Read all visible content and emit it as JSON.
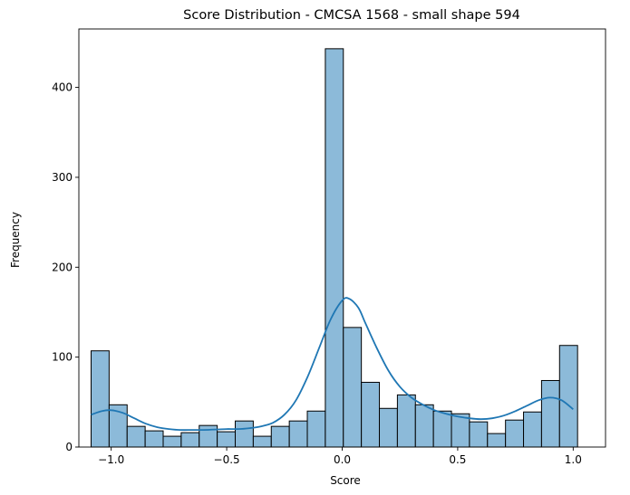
{
  "chart_data": {
    "type": "bar",
    "title": "Score Distribution - CMCSA 1568 - small shape 594",
    "xlabel": "Score",
    "ylabel": "Frequency",
    "xlim": [
      -1.14,
      1.14
    ],
    "ylim": [
      0,
      465
    ],
    "xticks": [
      -1.0,
      -0.5,
      0.0,
      0.5,
      1.0
    ],
    "xtick_labels": [
      "−1.0",
      "−0.5",
      "0.0",
      "0.5",
      "1.0"
    ],
    "yticks": [
      0,
      100,
      200,
      300,
      400
    ],
    "ytick_labels": [
      "0",
      "100",
      "200",
      "300",
      "400"
    ],
    "grid": false,
    "bin_edges": [
      -1.087,
      -1.009,
      -0.931,
      -0.853,
      -0.775,
      -0.697,
      -0.619,
      -0.541,
      -0.463,
      -0.385,
      -0.307,
      -0.229,
      -0.151,
      -0.073,
      0.005,
      0.083,
      0.161,
      0.239,
      0.317,
      0.395,
      0.473,
      0.551,
      0.629,
      0.707,
      0.785,
      0.863,
      0.941,
      1.019
    ],
    "values": [
      107,
      47,
      23,
      18,
      12,
      16,
      24,
      17,
      29,
      12,
      23,
      29,
      40,
      443,
      133,
      72,
      43,
      58,
      47,
      40,
      37,
      28,
      15,
      30,
      39,
      74,
      113
    ],
    "kde": {
      "x": [
        -1.087,
        -1.04,
        -1.0,
        -0.95,
        -0.9,
        -0.85,
        -0.8,
        -0.75,
        -0.7,
        -0.65,
        -0.6,
        -0.55,
        -0.5,
        -0.45,
        -0.4,
        -0.35,
        -0.3,
        -0.25,
        -0.2,
        -0.15,
        -0.1,
        -0.05,
        0.0,
        0.03,
        0.07,
        0.1,
        0.15,
        0.2,
        0.25,
        0.3,
        0.35,
        0.4,
        0.45,
        0.5,
        0.55,
        0.6,
        0.65,
        0.7,
        0.75,
        0.8,
        0.85,
        0.9,
        0.95,
        1.0
      ],
      "y": [
        36,
        40,
        41,
        38,
        32,
        26,
        22,
        20,
        19,
        19,
        19,
        19.5,
        20,
        20,
        21,
        23,
        27,
        36,
        52,
        78,
        110,
        142,
        163,
        165,
        155,
        138,
        110,
        85,
        67,
        55,
        47,
        41,
        37,
        34,
        32,
        31,
        32,
        35,
        40,
        46,
        52,
        55,
        52,
        42
      ]
    },
    "colors": {
      "bar_fill": "#8cbad9",
      "bar_edge": "#000000",
      "kde_line": "#1f77b4"
    }
  }
}
